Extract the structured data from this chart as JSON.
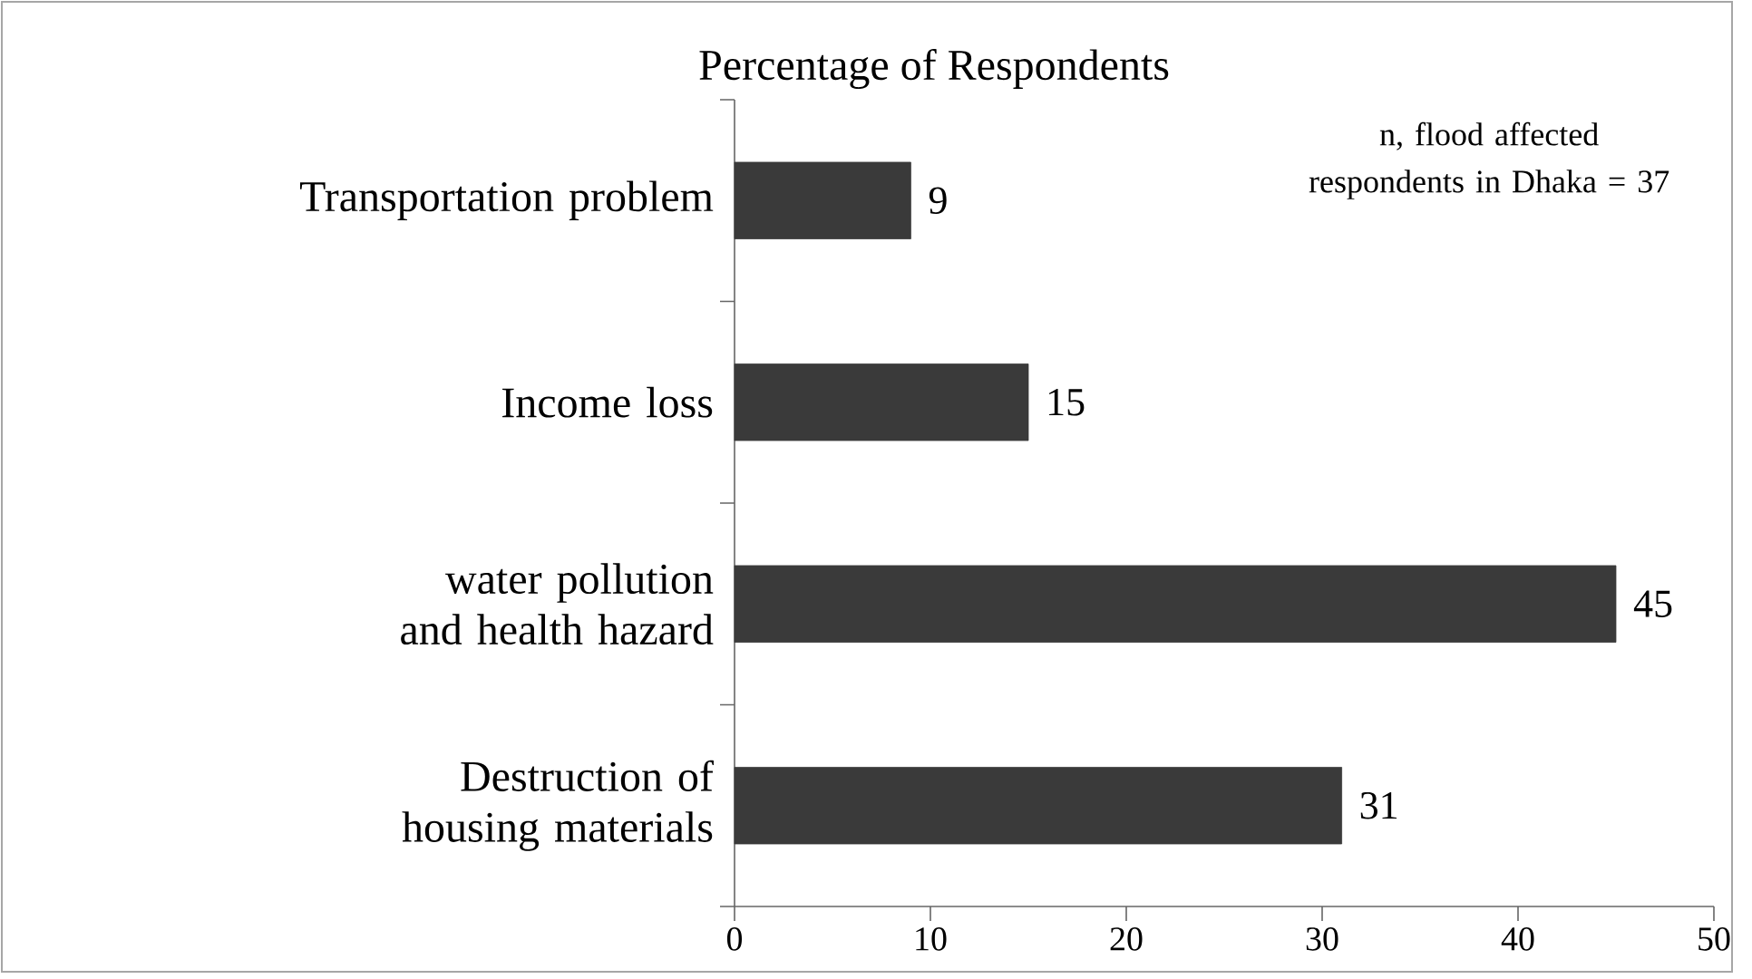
{
  "chart_data": {
    "type": "bar",
    "orientation": "horizontal",
    "title": "Percentage of Respondents",
    "categories": [
      "Transportation problem",
      "Income loss",
      "water pollution and health hazard",
      "Destruction of housing materials"
    ],
    "values": [
      9,
      15,
      45,
      31
    ],
    "color": "#3a3a3a",
    "xlim": [
      0,
      50
    ],
    "xticks": [
      0,
      10,
      20,
      30,
      40,
      50
    ],
    "data_labels": true,
    "annotations": [
      "n, flood affected respondents in Dhaka = 37"
    ]
  }
}
